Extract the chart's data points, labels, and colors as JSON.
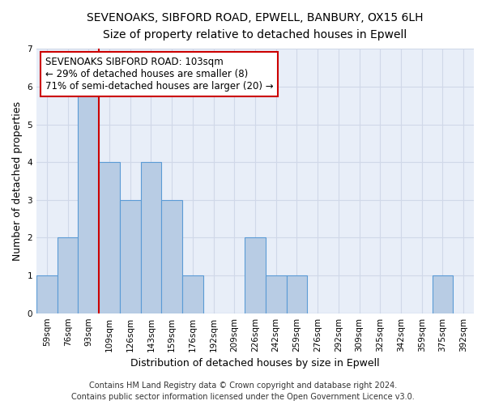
{
  "title": "SEVENOAKS, SIBFORD ROAD, EPWELL, BANBURY, OX15 6LH",
  "subtitle": "Size of property relative to detached houses in Epwell",
  "xlabel": "Distribution of detached houses by size in Epwell",
  "ylabel": "Number of detached properties",
  "categories": [
    "59sqm",
    "76sqm",
    "93sqm",
    "109sqm",
    "126sqm",
    "143sqm",
    "159sqm",
    "176sqm",
    "192sqm",
    "209sqm",
    "226sqm",
    "242sqm",
    "259sqm",
    "276sqm",
    "292sqm",
    "309sqm",
    "325sqm",
    "342sqm",
    "359sqm",
    "375sqm",
    "392sqm"
  ],
  "values": [
    1,
    2,
    6,
    4,
    3,
    4,
    3,
    1,
    0,
    0,
    2,
    1,
    1,
    0,
    0,
    0,
    0,
    0,
    0,
    1,
    0
  ],
  "bar_color": "#b8cce4",
  "bar_edge_color": "#5b9bd5",
  "vline_color": "#cc0000",
  "vline_x": 2.5,
  "annotation_text": "SEVENOAKS SIBFORD ROAD: 103sqm\n← 29% of detached houses are smaller (8)\n71% of semi-detached houses are larger (20) →",
  "annotation_box_color": "#ffffff",
  "annotation_box_edge": "#cc0000",
  "ylim": [
    0,
    7
  ],
  "yticks": [
    0,
    1,
    2,
    3,
    4,
    5,
    6,
    7
  ],
  "grid_color": "#d0d8e8",
  "footer1": "Contains HM Land Registry data © Crown copyright and database right 2024.",
  "footer2": "Contains public sector information licensed under the Open Government Licence v3.0.",
  "title_fontsize": 10,
  "subtitle_fontsize": 9,
  "label_fontsize": 9,
  "tick_fontsize": 7.5,
  "annotation_fontsize": 8.5,
  "footer_fontsize": 7,
  "bg_color": "#e8eef8"
}
